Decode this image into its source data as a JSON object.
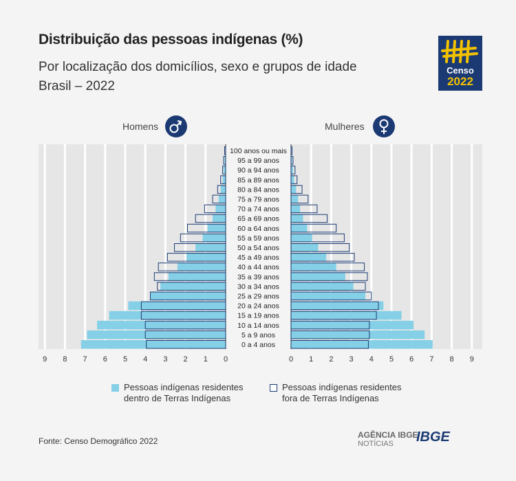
{
  "header": {
    "title": "Distribuição das pessoas indígenas (%)",
    "subtitle_line1": "Por localização dos domicílios, sexo e grupos de idade",
    "subtitle_line2": "Brasil – 2022"
  },
  "logo": {
    "word": "Censo",
    "year": "2022"
  },
  "chart_data": {
    "type": "bar",
    "orientation": "horizontal-population-pyramid",
    "groups": [
      "Homens",
      "Mulheres"
    ],
    "categories": [
      "100 anos ou mais",
      "95 a 99 anos",
      "90 a 94 anos",
      "85 a 89 anos",
      "80 a 84 anos",
      "75 a 79 anos",
      "70 a 74 anos",
      "65 a 69 anos",
      "60 a 64 anos",
      "55 a 59 anos",
      "50 a 54 anos",
      "45 a 49 anos",
      "40 a 44 anos",
      "35 a 39 anos",
      "30 a 34 anos",
      "25 a 29 anos",
      "20 a 24 anos",
      "15 a 19 anos",
      "10 a 14 anos",
      "5 a 9 anos",
      "0 a 4 anos"
    ],
    "series": [
      {
        "name": "Pessoas indígenas residentes dentro de Terras Indígenas",
        "men": [
          0.0,
          0.05,
          0.1,
          0.15,
          0.25,
          0.35,
          0.5,
          0.65,
          0.9,
          1.15,
          1.5,
          1.95,
          2.4,
          2.85,
          3.25,
          3.75,
          4.85,
          5.8,
          6.4,
          6.9,
          7.2
        ],
        "women": [
          0.0,
          0.05,
          0.1,
          0.15,
          0.25,
          0.35,
          0.45,
          0.6,
          0.8,
          1.05,
          1.35,
          1.75,
          2.25,
          2.7,
          3.1,
          3.7,
          4.6,
          5.5,
          6.1,
          6.65,
          7.05
        ]
      },
      {
        "name": "Pessoas indígenas residentes fora de Terras Indígenas",
        "men": [
          0.05,
          0.1,
          0.15,
          0.25,
          0.4,
          0.65,
          1.05,
          1.5,
          1.9,
          2.25,
          2.55,
          2.9,
          3.35,
          3.55,
          3.4,
          3.75,
          4.2,
          4.2,
          4.0,
          4.0,
          3.95
        ],
        "women": [
          0.05,
          0.1,
          0.2,
          0.3,
          0.55,
          0.85,
          1.3,
          1.8,
          2.25,
          2.65,
          2.9,
          3.15,
          3.65,
          3.8,
          3.7,
          4.0,
          4.35,
          4.25,
          3.9,
          3.9,
          3.85
        ]
      }
    ],
    "x_ticks_left": [
      "9",
      "8",
      "7",
      "6",
      "5",
      "4",
      "3",
      "2",
      "1",
      "0"
    ],
    "x_ticks_right": [
      "0",
      "1",
      "2",
      "3",
      "4",
      "5",
      "6",
      "7",
      "8",
      "9"
    ],
    "xlim": [
      0,
      9
    ],
    "grid": true,
    "legend_position": "bottom",
    "colors": {
      "inside": "#85d0e6",
      "outside_fill": "#ffffff",
      "outside_stroke": "#1b3a73",
      "grid": "#ffffff",
      "icon_bg": "#1b3a73"
    }
  },
  "labels": {
    "men": "Homens",
    "women": "Mulheres",
    "legend_inside_line1": "Pessoas indígenas residentes",
    "legend_inside_line2": "dentro de Terras Indígenas",
    "legend_outside_line1": "Pessoas indígenas residentes",
    "legend_outside_line2": "fora de Terras Indígenas"
  },
  "footer": {
    "source": "Fonte: Censo Demográfico 2022",
    "agency_line1": "AGÊNCIA IBGE",
    "agency_line2": "NOTÍCIAS",
    "ibge": "IBGE"
  }
}
